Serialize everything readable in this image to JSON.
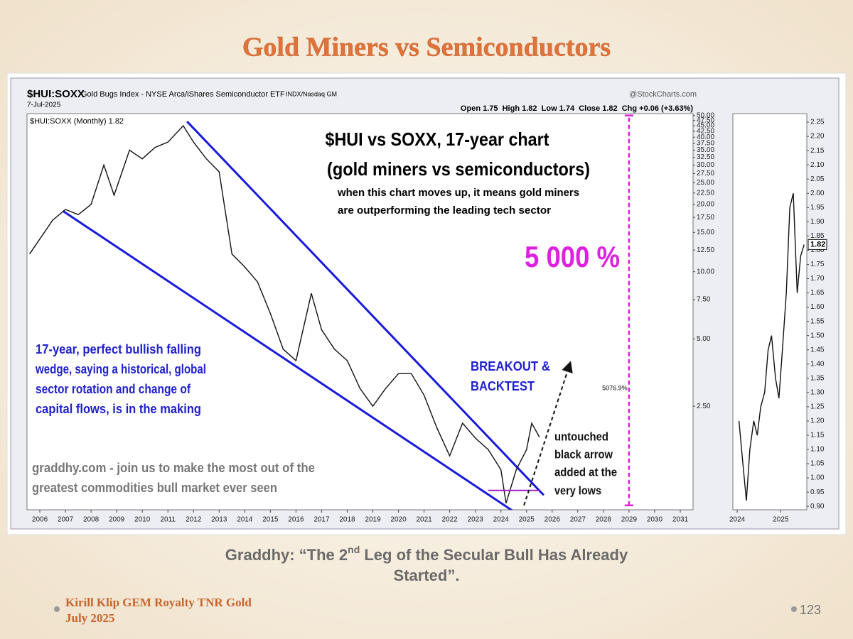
{
  "slide": {
    "title": "Gold Miners vs Semiconductors",
    "subtitle": {
      "line1": [
        "Graddhy: “The 2",
        "nd",
        " Leg of the Secular Bull Has Already"
      ],
      "line2": "Started”."
    },
    "footer": {
      "author": "Kirill Klip GEM Royalty TNR Gold",
      "date": "July 2025",
      "page": "123"
    }
  },
  "chart_data": [
    {
      "type": "line",
      "symbol": "$HUI:SOXX",
      "description": "Gold Bugs Index - NYSE Arca/iShares Semiconductor ETF",
      "exchange": "INDX/Nasdaq GM",
      "source": "@StockCharts.com",
      "date": "7-Jul-2025",
      "quote": "Open 1.75  High 1.82  Low 1.74  Close 1.82  Chg +0.06 (+3.63%)",
      "legend": "$HUI:SOXX (Monthly) 1.82",
      "log_y": true,
      "xlim": [
        2005.5,
        2031.5
      ],
      "ylim": [
        0.86,
        51
      ],
      "xticks": [
        2006,
        2007,
        2008,
        2009,
        2010,
        2011,
        2012,
        2013,
        2014,
        2015,
        2016,
        2017,
        2018,
        2019,
        2020,
        2021,
        2022,
        2023,
        2024,
        2025,
        2026,
        2027,
        2028,
        2029,
        2030,
        2031
      ],
      "yticks": [
        {
          "value": 50,
          "label": "50.00"
        },
        {
          "value": 47.5,
          "label": "47.50"
        },
        {
          "value": 45,
          "label": "45.00"
        },
        {
          "value": 42.5,
          "label": "42.50"
        },
        {
          "value": 40,
          "label": "40.00"
        },
        {
          "value": 37.5,
          "label": "37.50"
        },
        {
          "value": 35,
          "label": "35.00"
        },
        {
          "value": 32.5,
          "label": "32.50"
        },
        {
          "value": 30,
          "label": "30.00"
        },
        {
          "value": 27.5,
          "label": "27.50"
        },
        {
          "value": 25,
          "label": "25.00"
        },
        {
          "value": 22.5,
          "label": "22.50"
        },
        {
          "value": 20,
          "label": "20.00"
        },
        {
          "value": 17.5,
          "label": "17.50"
        },
        {
          "value": 15,
          "label": "15.00"
        },
        {
          "value": 12.5,
          "label": "12.50"
        },
        {
          "value": 10,
          "label": "10.00"
        },
        {
          "value": 7.5,
          "label": "7.50"
        },
        {
          "value": 5,
          "label": "5.00"
        },
        {
          "value": 2.5,
          "label": "2.50"
        }
      ],
      "series": [
        {
          "name": "$HUI:SOXX",
          "color": "#111111",
          "x": [
            2005.6,
            2006.5,
            2007.0,
            2007.5,
            2008.0,
            2008.5,
            2008.9,
            2009.5,
            2010.0,
            2010.5,
            2011.0,
            2011.6,
            2012.0,
            2012.5,
            2013.0,
            2013.5,
            2014.0,
            2014.5,
            2015.0,
            2015.5,
            2016.0,
            2016.6,
            2017.0,
            2017.5,
            2018.0,
            2018.5,
            2019.0,
            2019.5,
            2020.0,
            2020.5,
            2021.0,
            2021.5,
            2022.0,
            2022.5,
            2023.0,
            2023.5,
            2024.0,
            2024.2,
            2024.6,
            2025.0,
            2025.2,
            2025.5
          ],
          "values": [
            12,
            17,
            19,
            18,
            20,
            30,
            22,
            35,
            32,
            36,
            38,
            45,
            38,
            32,
            28,
            12,
            10.5,
            9,
            6.5,
            4.5,
            4,
            8,
            5.5,
            4.5,
            4,
            3,
            2.5,
            3,
            3.5,
            3.5,
            2.8,
            2,
            1.5,
            2.1,
            1.8,
            1.6,
            1.3,
            0.92,
            1.3,
            1.6,
            2.1,
            1.82
          ]
        }
      ],
      "trendlines": [
        {
          "color": "#1a1adc",
          "x": [
            2011.75,
            2025.67
          ],
          "y": [
            47,
            1.0
          ]
        },
        {
          "color": "#1a1adc",
          "x": [
            2006.9,
            2025.1
          ],
          "y": [
            18.7,
            0.76
          ]
        }
      ],
      "level": {
        "color": "#a020c0",
        "value": 1.05,
        "x": [
          2023.5,
          2025.5
        ]
      },
      "arrow": {
        "color": "#111111",
        "x": [
          2024.9,
          2026.7
        ],
        "y": [
          0.9,
          3.9
        ]
      },
      "range_marker": {
        "color": "#e020e0",
        "x": 2029.0,
        "y": [
          0.9,
          50
        ],
        "label": "5076.9%"
      },
      "annotations": {
        "headline": "$HUI vs SOXX, 17-year chart",
        "subhead": "(gold miners vs semiconductors)",
        "note": [
          "when this chart moves up, it means gold miners",
          "are outperforming the leading tech sector"
        ],
        "gain": "5 000 %",
        "wedge": [
          "17-year, perfect bullish falling",
          "wedge, saying a historical, global",
          "sector rotation and change of",
          "capital flows, is in the making"
        ],
        "breakout": [
          "BREAKOUT &",
          "BACKTEST"
        ],
        "arrow_note": [
          "untouched",
          "black arrow",
          "added at the",
          "very lows"
        ],
        "promo": [
          "graddhy.com - join us to make the most out of the",
          "greatest commodities bull market ever seen"
        ]
      }
    },
    {
      "type": "line",
      "xlim": [
        2023.9,
        2025.6
      ],
      "ylim": [
        0.888,
        2.28
      ],
      "xticks": [
        2024,
        2025
      ],
      "yticks": [
        {
          "value": 2.25,
          "label": "2.25"
        },
        {
          "value": 2.2,
          "label": "2.20"
        },
        {
          "value": 2.15,
          "label": "2.15"
        },
        {
          "value": 2.1,
          "label": "2.10"
        },
        {
          "value": 2.05,
          "label": "2.05"
        },
        {
          "value": 2.0,
          "label": "2.00"
        },
        {
          "value": 1.95,
          "label": "1.95"
        },
        {
          "value": 1.9,
          "label": "1.90"
        },
        {
          "value": 1.85,
          "label": "1.85"
        },
        {
          "value": 1.8,
          "label": "1.80"
        },
        {
          "value": 1.75,
          "label": "1.75"
        },
        {
          "value": 1.7,
          "label": "1.70"
        },
        {
          "value": 1.65,
          "label": "1.65"
        },
        {
          "value": 1.6,
          "label": "1.60"
        },
        {
          "value": 1.55,
          "label": "1.55"
        },
        {
          "value": 1.5,
          "label": "1.50"
        },
        {
          "value": 1.45,
          "label": "1.45"
        },
        {
          "value": 1.4,
          "label": "1.40"
        },
        {
          "value": 1.35,
          "label": "1.35"
        },
        {
          "value": 1.3,
          "label": "1.30"
        },
        {
          "value": 1.25,
          "label": "1.25"
        },
        {
          "value": 1.2,
          "label": "1.20"
        },
        {
          "value": 1.15,
          "label": "1.15"
        },
        {
          "value": 1.1,
          "label": "1.10"
        },
        {
          "value": 1.05,
          "label": "1.05"
        },
        {
          "value": 1.0,
          "label": "1.00"
        },
        {
          "value": 0.95,
          "label": "0.95"
        },
        {
          "value": 0.9,
          "label": "0.90"
        }
      ],
      "series": [
        {
          "name": "$HUI:SOXX",
          "color": "#111111",
          "x": [
            2024.04,
            2024.13,
            2024.21,
            2024.29,
            2024.38,
            2024.46,
            2024.54,
            2024.63,
            2024.71,
            2024.79,
            2024.88,
            2024.96,
            2025.04,
            2025.13,
            2025.21,
            2025.29,
            2025.38,
            2025.46,
            2025.54
          ],
          "values": [
            1.2,
            1.05,
            0.92,
            1.1,
            1.2,
            1.15,
            1.25,
            1.3,
            1.45,
            1.5,
            1.35,
            1.28,
            1.45,
            1.65,
            1.95,
            2.0,
            1.65,
            1.78,
            1.82
          ]
        }
      ]
    }
  ]
}
